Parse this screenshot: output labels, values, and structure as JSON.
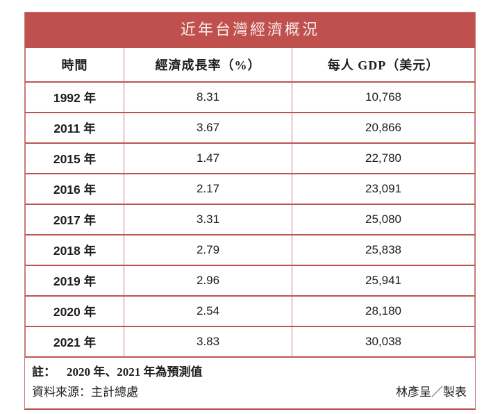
{
  "title": "近年台灣經濟概況",
  "colors": {
    "title_bar_bg": "#c0504d",
    "title_text": "#f8edec",
    "border_horizontal": "#bb5552",
    "border_vertical": "#cd7d7a",
    "body_text": "#1e1e1e",
    "background": "#ffffff"
  },
  "chart_data": {
    "type": "table",
    "title": "近年台灣經濟概況",
    "columns": [
      "時間",
      "經濟成長率（%）",
      "每人 GDP（美元）"
    ],
    "rows": [
      [
        "1992 年",
        "8.31",
        "10,768"
      ],
      [
        "2011 年",
        "3.67",
        "20,866"
      ],
      [
        "2015 年",
        "1.47",
        "22,780"
      ],
      [
        "2016 年",
        "2.17",
        "23,091"
      ],
      [
        "2017 年",
        "3.31",
        "25,080"
      ],
      [
        "2018 年",
        "2.79",
        "25,838"
      ],
      [
        "2019 年",
        "2.96",
        "25,941"
      ],
      [
        "2020 年",
        "2.54",
        "28,180"
      ],
      [
        "2021 年",
        "3.83",
        "30,038"
      ]
    ],
    "categories": [
      "1992",
      "2011",
      "2015",
      "2016",
      "2017",
      "2018",
      "2019",
      "2020",
      "2021"
    ],
    "series": [
      {
        "name": "經濟成長率（%）",
        "values": [
          8.31,
          3.67,
          1.47,
          2.17,
          3.31,
          2.79,
          2.96,
          2.54,
          3.83
        ]
      },
      {
        "name": "每人 GDP（美元）",
        "values": [
          10768,
          20866,
          22780,
          23091,
          25080,
          25838,
          25941,
          28180,
          30038
        ]
      }
    ]
  },
  "notes": {
    "note_label": "註：",
    "note_text": "2020 年、2021 年為預測值",
    "source": "資料來源：主計總處",
    "credit": "林彥呈／製表"
  }
}
